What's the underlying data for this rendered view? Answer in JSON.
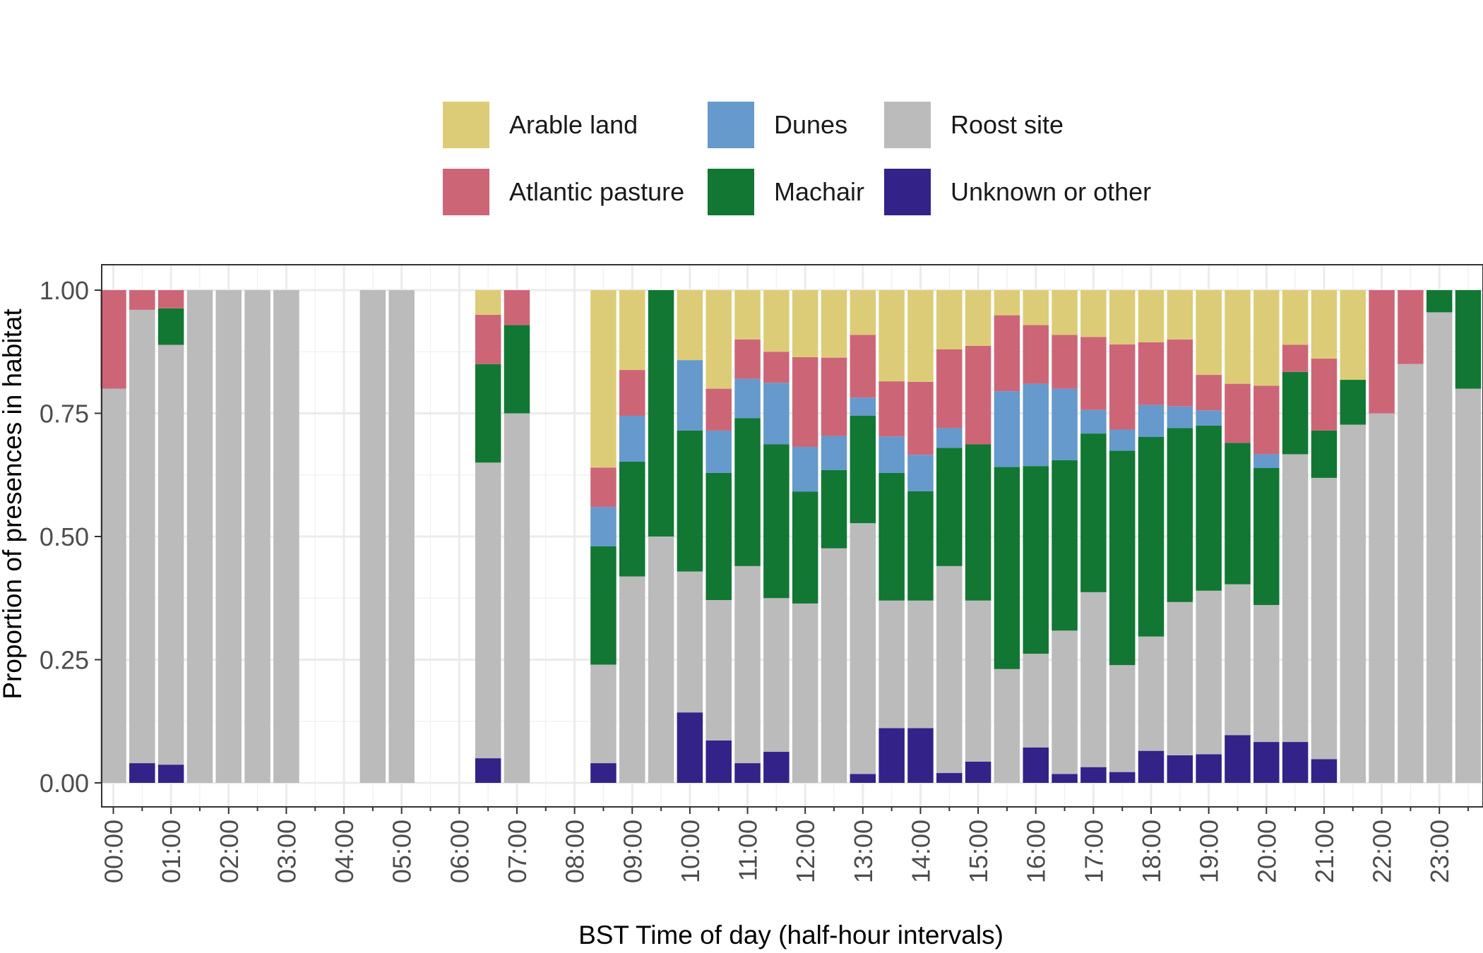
{
  "chart_data": {
    "type": "bar",
    "stacked": true,
    "xlabel": "BST Time of day (half-hour intervals)",
    "ylabel": "Proportion of presences in habitat",
    "ylim": [
      0,
      1
    ],
    "yticks": [
      "0.00",
      "0.25",
      "0.50",
      "0.75",
      "1.00"
    ],
    "xticks": [
      "00:00",
      "01:00",
      "02:00",
      "03:00",
      "04:00",
      "05:00",
      "06:00",
      "07:00",
      "08:00",
      "09:00",
      "10:00",
      "11:00",
      "12:00",
      "13:00",
      "14:00",
      "15:00",
      "16:00",
      "17:00",
      "18:00",
      "19:00",
      "20:00",
      "21:00",
      "22:00",
      "23:00"
    ],
    "grid": true,
    "legend_position": "top",
    "legend": [
      {
        "name": "Arable land",
        "color": "#DDCC77"
      },
      {
        "name": "Dunes",
        "color": "#6699CC"
      },
      {
        "name": "Roost site",
        "color": "#BBBBBB"
      },
      {
        "name": "Atlantic pasture",
        "color": "#CC6677"
      },
      {
        "name": "Machair",
        "color": "#117733"
      },
      {
        "name": "Unknown or other",
        "color": "#332288"
      }
    ],
    "stack_order_bottom_to_top": [
      "Unknown or other",
      "Roost site",
      "Machair",
      "Dunes",
      "Atlantic pasture",
      "Arable land"
    ],
    "categories": [
      "00:00",
      "00:30",
      "01:00",
      "01:30",
      "02:00",
      "02:30",
      "03:00",
      "03:30",
      "04:00",
      "04:30",
      "05:00",
      "05:30",
      "06:00",
      "06:30",
      "07:00",
      "07:30",
      "08:00",
      "08:30",
      "09:00",
      "09:30",
      "10:00",
      "10:30",
      "11:00",
      "11:30",
      "12:00",
      "12:30",
      "13:00",
      "13:30",
      "14:00",
      "14:30",
      "15:00",
      "15:30",
      "16:00",
      "16:30",
      "17:00",
      "17:30",
      "18:00",
      "18:30",
      "19:00",
      "19:30",
      "20:00",
      "20:30",
      "21:00",
      "21:30",
      "22:00",
      "22:30",
      "23:00",
      "23:30"
    ],
    "series": [
      {
        "name": "Unknown or other",
        "values": [
          0,
          0.04,
          0.037,
          0,
          0,
          0,
          0,
          null,
          null,
          0,
          0,
          null,
          null,
          0.05,
          0,
          null,
          null,
          0.04,
          0,
          0,
          0.143,
          0.086,
          0.04,
          0.063,
          0,
          0,
          0.018,
          0.111,
          0.111,
          0.02,
          0.043,
          0,
          0.072,
          0.018,
          0.032,
          0.022,
          0.065,
          0.056,
          0.058,
          0.097,
          0.083,
          0.083,
          0.048,
          0,
          0,
          0,
          0,
          0
        ]
      },
      {
        "name": "Roost site",
        "values": [
          0.8,
          0.92,
          0.852,
          1,
          1,
          1,
          1,
          null,
          null,
          1,
          1,
          null,
          null,
          0.6,
          0.75,
          null,
          null,
          0.2,
          0.419,
          0.5,
          0.286,
          0.285,
          0.4,
          0.312,
          0.364,
          0.476,
          0.509,
          0.259,
          0.259,
          0.42,
          0.327,
          0.231,
          0.19,
          0.291,
          0.355,
          0.217,
          0.232,
          0.311,
          0.332,
          0.306,
          0.278,
          0.584,
          0.571,
          0.727,
          0.75,
          0.85,
          0.955,
          0.8
        ]
      },
      {
        "name": "Machair",
        "values": [
          0,
          0,
          0.074,
          0,
          0,
          0,
          0,
          null,
          null,
          0,
          0,
          null,
          null,
          0.2,
          0.179,
          null,
          null,
          0.24,
          0.233,
          0.5,
          0.286,
          0.258,
          0.3,
          0.312,
          0.227,
          0.159,
          0.218,
          0.259,
          0.222,
          0.24,
          0.317,
          0.41,
          0.381,
          0.346,
          0.322,
          0.435,
          0.405,
          0.353,
          0.335,
          0.287,
          0.278,
          0.167,
          0.096,
          0.091,
          0,
          0,
          0.045,
          0.2
        ]
      },
      {
        "name": "Dunes",
        "values": [
          0,
          0,
          0,
          0,
          0,
          0,
          0,
          null,
          null,
          0,
          0,
          null,
          null,
          0,
          0,
          null,
          null,
          0.08,
          0.093,
          0,
          0.143,
          0.086,
          0.08,
          0.125,
          0.091,
          0.069,
          0.037,
          0.074,
          0.074,
          0.04,
          0,
          0.154,
          0.167,
          0.145,
          0.048,
          0.043,
          0.065,
          0.044,
          0.031,
          0,
          0.028,
          0,
          0,
          0,
          0,
          0,
          0,
          0
        ]
      },
      {
        "name": "Atlantic pasture",
        "values": [
          0.2,
          0.04,
          0.037,
          0,
          0,
          0,
          0,
          null,
          null,
          0,
          0,
          null,
          null,
          0.1,
          0.071,
          null,
          null,
          0.08,
          0.093,
          0,
          0,
          0.085,
          0.08,
          0.063,
          0.182,
          0.159,
          0.127,
          0.112,
          0.148,
          0.16,
          0.2,
          0.154,
          0.119,
          0.109,
          0.148,
          0.173,
          0.127,
          0.136,
          0.072,
          0.12,
          0.139,
          0.055,
          0.146,
          0,
          0.25,
          0.15,
          0,
          0
        ]
      },
      {
        "name": "Arable land",
        "values": [
          0,
          0,
          0,
          0,
          0,
          0,
          0,
          null,
          null,
          0,
          0,
          null,
          null,
          0.05,
          0,
          null,
          null,
          0.36,
          0.162,
          0,
          0.142,
          0.2,
          0.1,
          0.125,
          0.136,
          0.137,
          0.091,
          0.185,
          0.186,
          0.12,
          0.113,
          0.051,
          0.071,
          0.091,
          0.095,
          0.11,
          0.106,
          0.1,
          0.172,
          0.19,
          0.194,
          0.111,
          0.139,
          0.182,
          0,
          0,
          0,
          0
        ]
      }
    ]
  }
}
